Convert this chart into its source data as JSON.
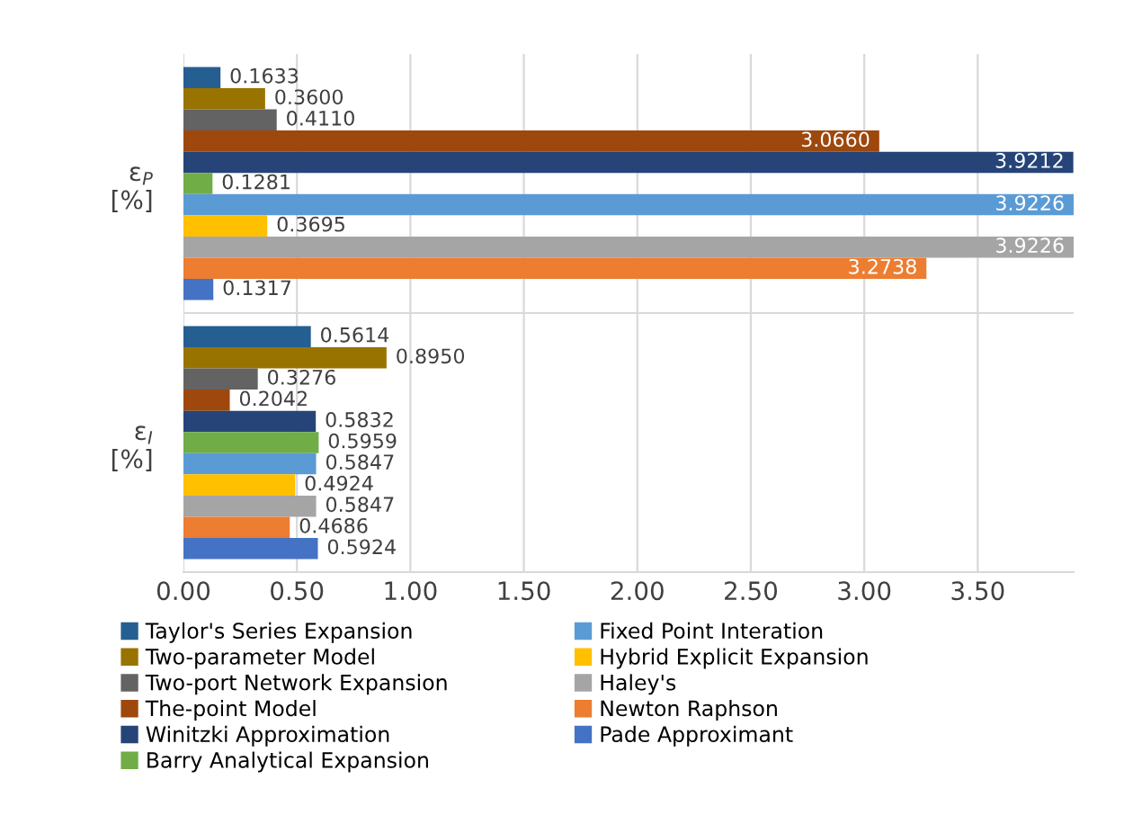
{
  "chart_data": {
    "type": "bar",
    "orientation": "horizontal",
    "categories": [
      "ε$_{P}$\n[%]",
      "ε$_{I}$\n[%]"
    ],
    "series": [
      {
        "name": "Taylor's Series Expansion",
        "color": "#255e91",
        "values": [
          0.1633,
          0.5614
        ],
        "value_labels": [
          "0.1633",
          "0.5614"
        ]
      },
      {
        "name": "Two-parameter Model",
        "color": "#997300",
        "values": [
          0.36,
          0.895
        ],
        "value_labels": [
          "0.3600",
          "0.8950"
        ]
      },
      {
        "name": "Two-port Network Expansion",
        "color": "#636363",
        "values": [
          0.411,
          0.3276
        ],
        "value_labels": [
          "0.4110",
          "0.3276"
        ]
      },
      {
        "name": "The-point Model",
        "color": "#9e480e",
        "values": [
          3.066,
          0.2042
        ],
        "value_labels": [
          "3.0660",
          "0.2042"
        ]
      },
      {
        "name": "Winitzki Approximation",
        "color": "#264478",
        "values": [
          3.9212,
          0.5832
        ],
        "value_labels": [
          "3.9212",
          "0.5832"
        ]
      },
      {
        "name": "Barry Analytical Expansion",
        "color": "#70ad47",
        "values": [
          0.1281,
          0.5959
        ],
        "value_labels": [
          "0.1281",
          "0.5959"
        ]
      },
      {
        "name": "Fixed Point Interation",
        "color": "#5b9bd5",
        "values": [
          3.9226,
          0.5847
        ],
        "value_labels": [
          "3.9226",
          "0.5847"
        ]
      },
      {
        "name": "Hybrid Explicit Expansion",
        "color": "#ffc000",
        "values": [
          0.3695,
          0.4924
        ],
        "value_labels": [
          "0.3695",
          "0.4924"
        ]
      },
      {
        "name": "Haley's",
        "color": "#a5a5a5",
        "values": [
          3.9226,
          0.5847
        ],
        "value_labels": [
          "3.9226",
          "0.5847"
        ]
      },
      {
        "name": "Newton Raphson",
        "color": "#ed7d31",
        "values": [
          3.2738,
          0.4686
        ],
        "value_labels": [
          "3.2738",
          "0.4686"
        ]
      },
      {
        "name": "Pade Approximant",
        "color": "#4472c4",
        "values": [
          0.1317,
          0.5924
        ],
        "value_labels": [
          "0.1317",
          "0.5924"
        ]
      }
    ],
    "xlim": [
      0,
      3.9226
    ],
    "xticks": [
      {
        "value": 0,
        "label": "0.00"
      },
      {
        "value": 0.5,
        "label": "0.50"
      },
      {
        "value": 1,
        "label": "1.00"
      },
      {
        "value": 1.5,
        "label": "1.50"
      },
      {
        "value": 2,
        "label": "2.00"
      },
      {
        "value": 2.5,
        "label": "2.50"
      },
      {
        "value": 3,
        "label": "3.00"
      },
      {
        "value": 3.5,
        "label": "3.50"
      }
    ],
    "grid": "x",
    "legend": "bottom"
  }
}
